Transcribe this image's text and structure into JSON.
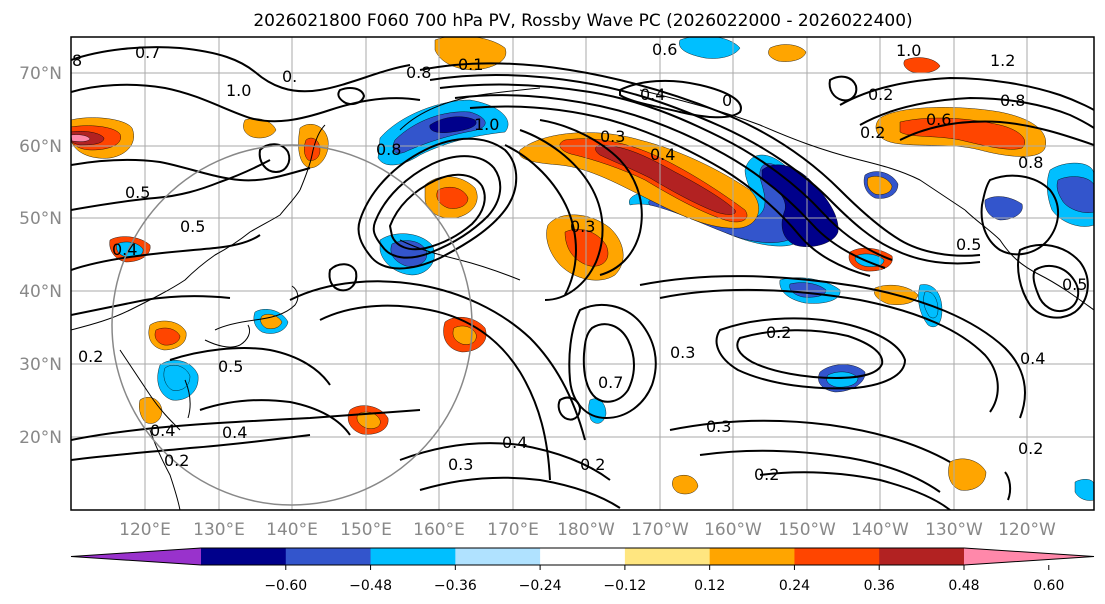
{
  "title": "2026021800 F060 700 hPa PV, Rossby Wave PC (2026022000 - 2026022400)",
  "lat_labels": [
    "70°N",
    "60°N",
    "50°N",
    "40°N",
    "30°N",
    "20°N"
  ],
  "lon_labels": [
    "120°E",
    "130°E",
    "140°E",
    "150°E",
    "160°E",
    "170°E",
    "180°W",
    "170°W",
    "160°W",
    "150°W",
    "140°W",
    "130°W",
    "120°W"
  ],
  "colorbar": {
    "colors": [
      "#9932cc",
      "#00008b",
      "#3355cc",
      "#00bfff",
      "#b0e2ff",
      "#ffffff",
      "#ffe680",
      "#ffa500",
      "#ff4500",
      "#b22222",
      "#ff88aa"
    ],
    "ticks": [
      "−0.60",
      "−0.48",
      "−0.36",
      "−0.24",
      "−0.12",
      "0.12",
      "0.24",
      "0.36",
      "0.48",
      "0.60"
    ]
  },
  "contour_labels": [
    "0.7",
    "8",
    "0.",
    "1.0",
    "0.8",
    "0.1",
    "0.6",
    "1.0",
    "1.2",
    "0.4",
    "0",
    "0.8",
    "0.2",
    "0.6",
    "1.0",
    "0.8",
    "0.3",
    "0.5",
    "0.5",
    "0.4",
    "0.4",
    "0.8",
    "0.5",
    "0.2",
    "0.3",
    "0.7",
    "0.3",
    "0.2",
    "0.4",
    "0.2",
    "0.5",
    "0.4",
    "0.4",
    "0.2",
    "0.3",
    "0.4",
    "0.2",
    "0.3",
    "0.2",
    "0.2",
    "0.5"
  ],
  "shading": [
    {
      "c": "#ffa500"
    },
    {
      "c": "#ff4500"
    },
    {
      "c": "#b22222"
    },
    {
      "c": "#ff88aa"
    },
    {
      "c": "#00bfff"
    },
    {
      "c": "#3355cc"
    },
    {
      "c": "#00008b"
    },
    {
      "c": "#00bfff"
    },
    {
      "c": "#3355cc"
    },
    {
      "c": "#00008b"
    },
    {
      "c": "#ffa500"
    },
    {
      "c": "#ff4500"
    },
    {
      "c": "#b22222"
    },
    {
      "c": "#00bfff"
    },
    {
      "c": "#3355cc"
    },
    {
      "c": "#ffa500"
    },
    {
      "c": "#ff4500"
    },
    {
      "c": "#ffa500"
    },
    {
      "c": "#ff4500"
    },
    {
      "c": "#00bfff"
    },
    {
      "c": "#3355cc"
    },
    {
      "c": "#ffa500"
    },
    {
      "c": "#ff4500"
    },
    {
      "c": "#ffa500"
    },
    {
      "c": "#ff4500"
    },
    {
      "c": "#00bfff"
    },
    {
      "c": "#3355cc"
    },
    {
      "c": "#ffa500"
    },
    {
      "c": "#ff4500"
    },
    {
      "c": "#00bfff"
    },
    {
      "c": "#00bfff"
    },
    {
      "c": "#ffa500"
    },
    {
      "c": "#ff4500"
    },
    {
      "c": "#ffa500"
    },
    {
      "c": "#ff4500"
    },
    {
      "c": "#ffa500"
    },
    {
      "c": "#ff4500"
    },
    {
      "c": "#00bfff"
    },
    {
      "c": "#3355cc"
    },
    {
      "c": "#00bfff"
    },
    {
      "c": "#ffa500"
    },
    {
      "c": "#ffa500"
    },
    {
      "c": "#00bfff"
    },
    {
      "c": "#00bfff"
    },
    {
      "c": "#3355cc"
    },
    {
      "c": "#ffa500"
    },
    {
      "c": "#ff4500"
    },
    {
      "c": "#00bfff"
    },
    {
      "c": "#3355cc"
    },
    {
      "c": "#ffa500"
    },
    {
      "c": "#ffa500"
    },
    {
      "c": "#00bfff"
    },
    {
      "c": "#00bfff"
    },
    {
      "c": "#ffa500"
    },
    {
      "c": "#ffa500"
    },
    {
      "c": "#ff4500"
    },
    {
      "c": "#ffa500"
    },
    {
      "c": "#00bfff"
    },
    {
      "c": "#00bfff"
    },
    {
      "c": "#3355cc"
    }
  ]
}
